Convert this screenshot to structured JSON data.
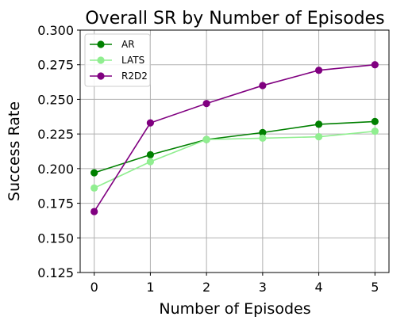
{
  "chart_data": {
    "type": "line",
    "title": "Overall SR by Number of Episodes",
    "xlabel": "Number of Episodes",
    "ylabel": "Success Rate",
    "x": [
      0,
      1,
      2,
      3,
      4,
      5
    ],
    "xlim": [
      -0.25,
      5.25
    ],
    "ylim": [
      0.125,
      0.3
    ],
    "xticks": [
      "0",
      "1",
      "2",
      "3",
      "4",
      "5"
    ],
    "yticks": [
      "0.125",
      "0.150",
      "0.175",
      "0.200",
      "0.225",
      "0.250",
      "0.275",
      "0.300"
    ],
    "grid": true,
    "legend_position": "top-left",
    "series": [
      {
        "name": "AR",
        "color": "#008000",
        "values": [
          0.197,
          0.21,
          0.221,
          0.226,
          0.232,
          0.234
        ]
      },
      {
        "name": "LATS",
        "color": "#90ee90",
        "values": [
          0.186,
          0.205,
          0.221,
          0.222,
          0.223,
          0.227
        ]
      },
      {
        "name": "R2D2",
        "color": "#800080",
        "values": [
          0.169,
          0.233,
          0.247,
          0.26,
          0.271,
          0.275
        ]
      }
    ]
  }
}
